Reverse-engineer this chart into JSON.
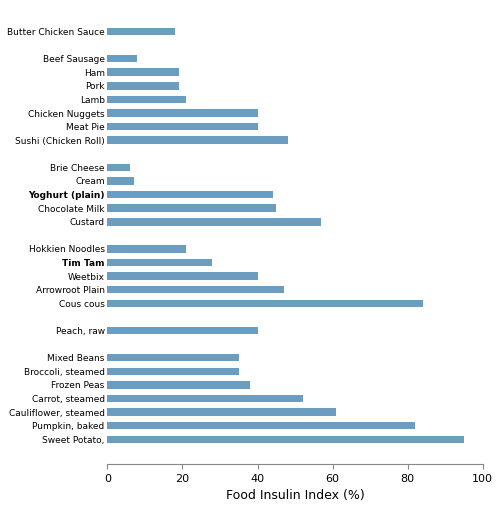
{
  "categories": [
    "Butter Chicken Sauce",
    "",
    "Beef Sausage",
    "Ham",
    "Pork",
    "Lamb",
    "Chicken Nuggets",
    "Meat Pie",
    "Sushi (Chicken Roll)",
    "",
    "Brie Cheese",
    "Cream",
    "Yoghurt (plain)",
    "Chocolate Milk",
    "Custard",
    "",
    "Hokkien Noodles",
    "Tim Tam",
    "Weetbix",
    "Arrowroot Plain",
    "Cous cous",
    "",
    "Peach, raw",
    "",
    "Mixed Beans",
    "Broccoli, steamed",
    "Frozen Peas",
    "Carrot, steamed",
    "Cauliflower, steamed",
    "Pumpkin, baked",
    "Sweet Potato,"
  ],
  "values": [
    18,
    0,
    8,
    19,
    19,
    21,
    40,
    40,
    48,
    0,
    6,
    7,
    44,
    45,
    57,
    0,
    21,
    28,
    40,
    47,
    84,
    0,
    40,
    0,
    35,
    35,
    38,
    52,
    61,
    82,
    95
  ],
  "bar_color": "#6a9dbf",
  "xlabel": "Food Insulin Index (%)",
  "xlim": [
    0,
    100
  ],
  "xticks": [
    0,
    20,
    40,
    60,
    80,
    100
  ],
  "bold_labels": [
    "Yoghurt (plain)",
    "Tim Tam"
  ],
  "background_color": "#ffffff",
  "figure_width": 5.0,
  "figure_height": 5.09,
  "dpi": 100
}
